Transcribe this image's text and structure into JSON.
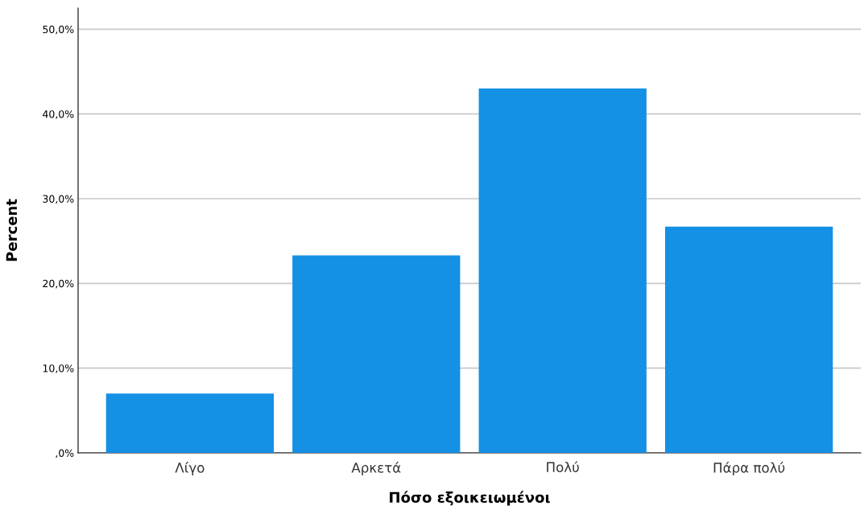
{
  "chart_data": {
    "type": "bar",
    "xlabel": "Πόσο εξοικειωμένοι",
    "ylabel": "Percent",
    "categories": [
      "Λίγο",
      "Αρκετά",
      "Πολύ",
      "Πάρα πολύ"
    ],
    "values": [
      7.0,
      23.3,
      43.0,
      26.7
    ],
    "color": "#1490e4",
    "ylim": [
      0,
      52.5
    ],
    "yticks": [
      {
        "value": 0,
        "label": ",0%"
      },
      {
        "value": 10,
        "label": "10,0%"
      },
      {
        "value": 20,
        "label": "20,0%"
      },
      {
        "value": 30,
        "label": "30,0%"
      },
      {
        "value": 40,
        "label": "40,0%"
      },
      {
        "value": 50,
        "label": "50,0%"
      }
    ],
    "grid": "y"
  }
}
